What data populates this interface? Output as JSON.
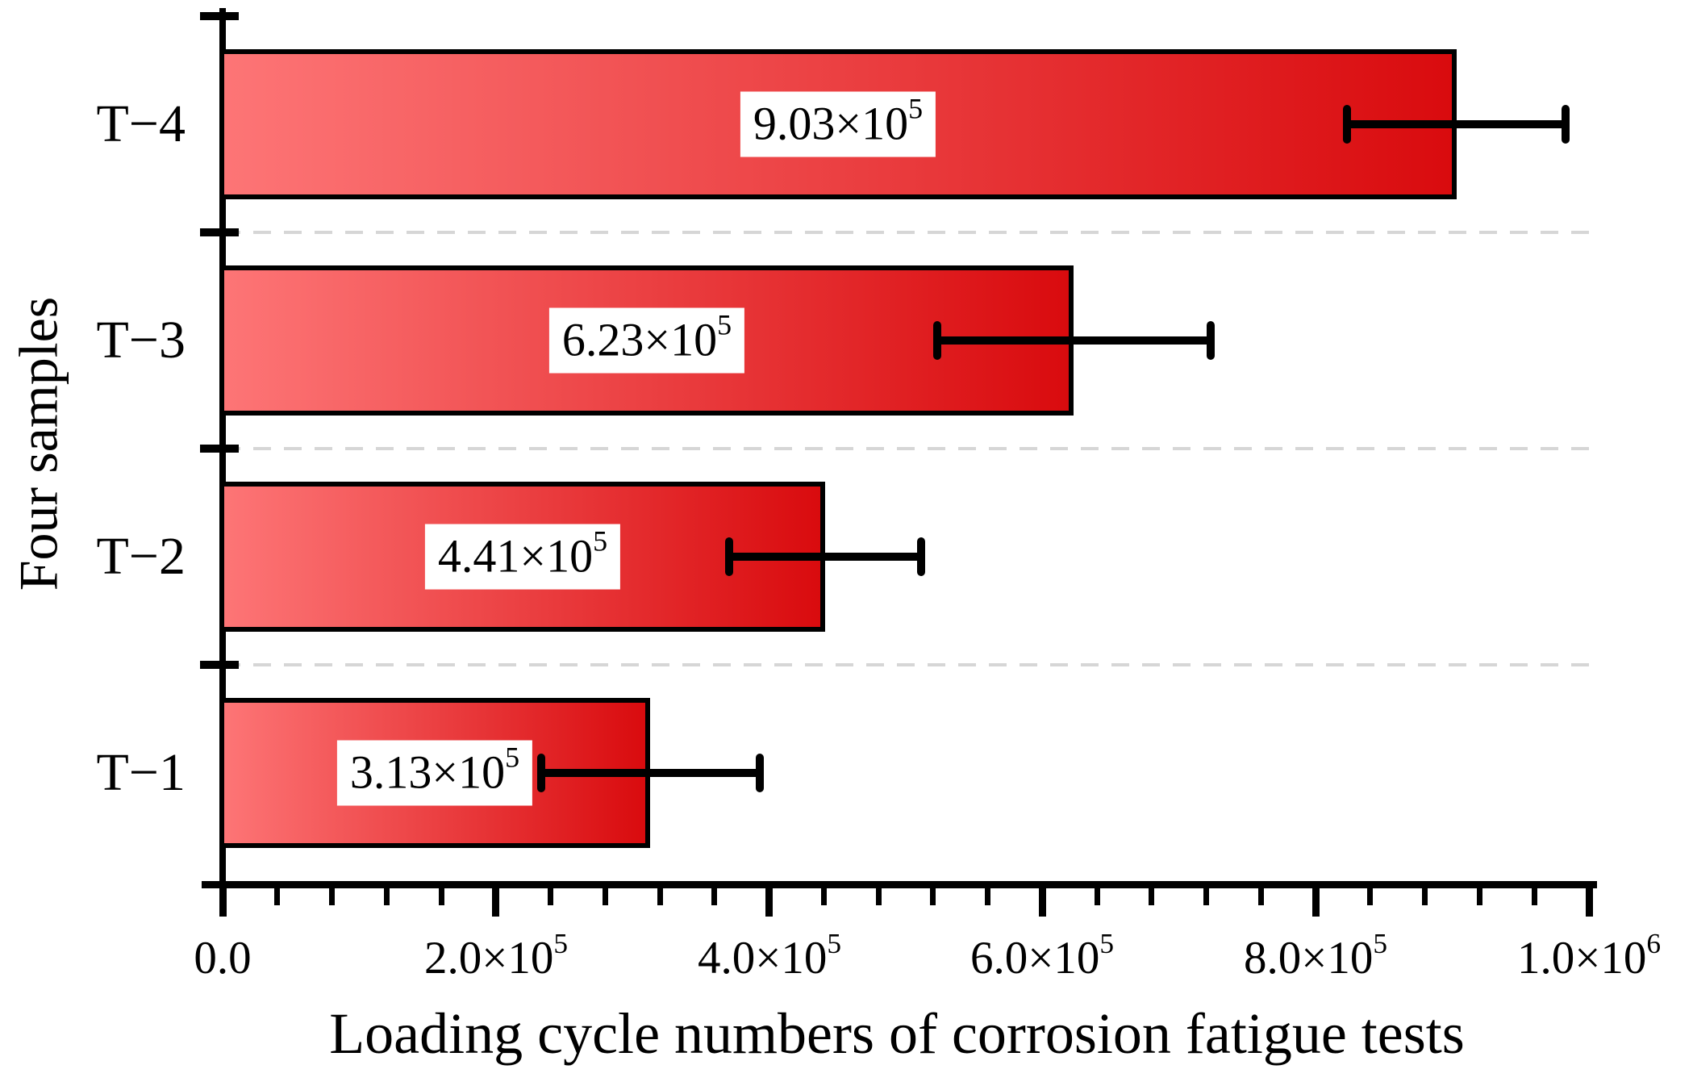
{
  "chart_data": {
    "type": "bar",
    "orientation": "horizontal",
    "title": "",
    "xlabel": "Loading cycle numbers of corrosion fatigue tests",
    "ylabel": "Four samples",
    "xlim": [
      0,
      1000000
    ],
    "legend_position": "none",
    "grid": "dashed horizontal separators between category bands",
    "categories": [
      "T−4",
      "T−3",
      "T−2",
      "T−1"
    ],
    "values": [
      903000,
      623000,
      441000,
      313000
    ],
    "errors": [
      80000,
      100000,
      70000,
      80000
    ],
    "value_labels": [
      {
        "base": "9.03×10",
        "sup": "5"
      },
      {
        "base": "6.23×10",
        "sup": "5"
      },
      {
        "base": "4.41×10",
        "sup": "5"
      },
      {
        "base": "3.13×10",
        "sup": "5"
      }
    ],
    "x_ticks": [
      {
        "value": 0,
        "label": {
          "base": "0.0",
          "sup": ""
        }
      },
      {
        "value": 200000,
        "label": {
          "base": "2.0×10",
          "sup": "5"
        }
      },
      {
        "value": 400000,
        "label": {
          "base": "4.0×10",
          "sup": "5"
        }
      },
      {
        "value": 600000,
        "label": {
          "base": "6.0×10",
          "sup": "5"
        }
      },
      {
        "value": 800000,
        "label": {
          "base": "8.0×10",
          "sup": "5"
        }
      },
      {
        "value": 1000000,
        "label": {
          "base": "1.0×10",
          "sup": "6"
        }
      }
    ],
    "x_minor_tick_step": 40000,
    "colors": {
      "bar_gradient_start": "#fd7576",
      "bar_gradient_end": "#d90b0e",
      "bar_border": "#000000",
      "error_bar": "#000000",
      "gridline": "#d6d6d6",
      "axis": "#000000",
      "background": "#ffffff"
    }
  }
}
